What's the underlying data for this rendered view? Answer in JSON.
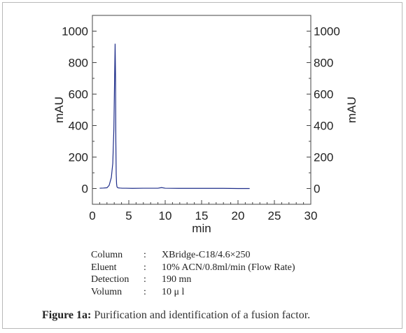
{
  "chart_data": {
    "type": "line",
    "xlabel": "min",
    "ylabel_left": "mAU",
    "ylabel_right": "mAU",
    "xlim": [
      0,
      30
    ],
    "ylim": [
      -100,
      1100
    ],
    "x_ticks": [
      0,
      5,
      10,
      15,
      20,
      25,
      30
    ],
    "y_ticks": [
      0,
      200,
      400,
      600,
      800,
      1000
    ],
    "line_color": "#1f2e8a",
    "series": [
      {
        "x": [
          1.0,
          1.5,
          2.0,
          2.3,
          2.6,
          2.8,
          2.95,
          3.05,
          3.12,
          3.18,
          3.22,
          3.27,
          3.32,
          3.37,
          3.45,
          3.6,
          3.8,
          4.1,
          4.6,
          5.5,
          7.0,
          9.0,
          9.5,
          10.0,
          12.0,
          14.0,
          16.0,
          18.0,
          20.0,
          21.6
        ],
        "y": [
          2,
          3,
          5,
          20,
          70,
          160,
          380,
          700,
          920,
          700,
          300,
          90,
          30,
          12,
          6,
          4,
          3,
          2,
          2,
          1,
          2,
          2,
          6,
          2,
          1,
          1,
          1,
          1,
          0,
          0
        ]
      }
    ]
  },
  "params": [
    {
      "key": "Column",
      "sep": ":",
      "value": "XBridge-C18/4.6×250"
    },
    {
      "key": "Eluent",
      "sep": ":",
      "value": "10% ACN/0.8ml/min  (Flow Rate)"
    },
    {
      "key": "Detection",
      "sep": ":",
      "value": "190 mn"
    },
    {
      "key": "Volumn",
      "sep": ":",
      "value": "10 μ l"
    }
  ],
  "caption": {
    "lead": "Figure 1a:",
    "text": " Purification and identification of a fusion factor."
  }
}
